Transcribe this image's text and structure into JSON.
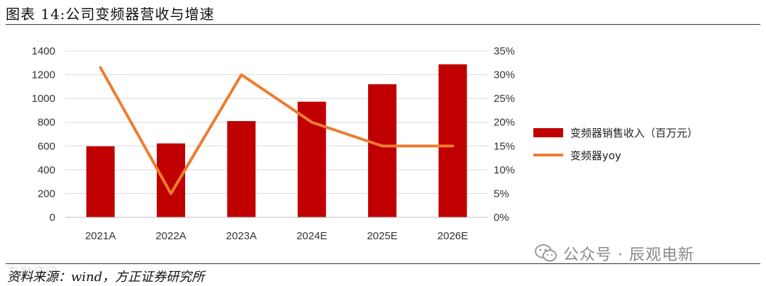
{
  "header": {
    "title": "图表 14:公司变频器营收与增速"
  },
  "footer": {
    "source": "资料来源：wind，方正证券研究所",
    "watermark": "东融资讯",
    "wechat_label": "公众号 · 辰观电新"
  },
  "chart_data": {
    "type": "bar",
    "categories": [
      "2021A",
      "2022A",
      "2023A",
      "2024E",
      "2025E",
      "2026E"
    ],
    "series": [
      {
        "name": "变频器销售收入（百万元）",
        "type": "bar",
        "axis": "left",
        "color": "#c00000",
        "values": [
          598,
          622,
          810,
          973,
          1120,
          1288
        ]
      },
      {
        "name": "变频器yoy",
        "type": "line",
        "axis": "right",
        "color": "#ed7d31",
        "values": [
          31.5,
          5.0,
          30.0,
          20.0,
          15.0,
          15.0
        ]
      }
    ],
    "ylim_left": [
      0,
      1400
    ],
    "yticks_left": [
      "0",
      "200",
      "400",
      "600",
      "800",
      "1000",
      "1200",
      "1400"
    ],
    "ylim_right": [
      0,
      35
    ],
    "yticks_right": [
      "0%",
      "5%",
      "10%",
      "15%",
      "20%",
      "25%",
      "30%",
      "35%"
    ],
    "grid": true,
    "legend_position": "right"
  }
}
